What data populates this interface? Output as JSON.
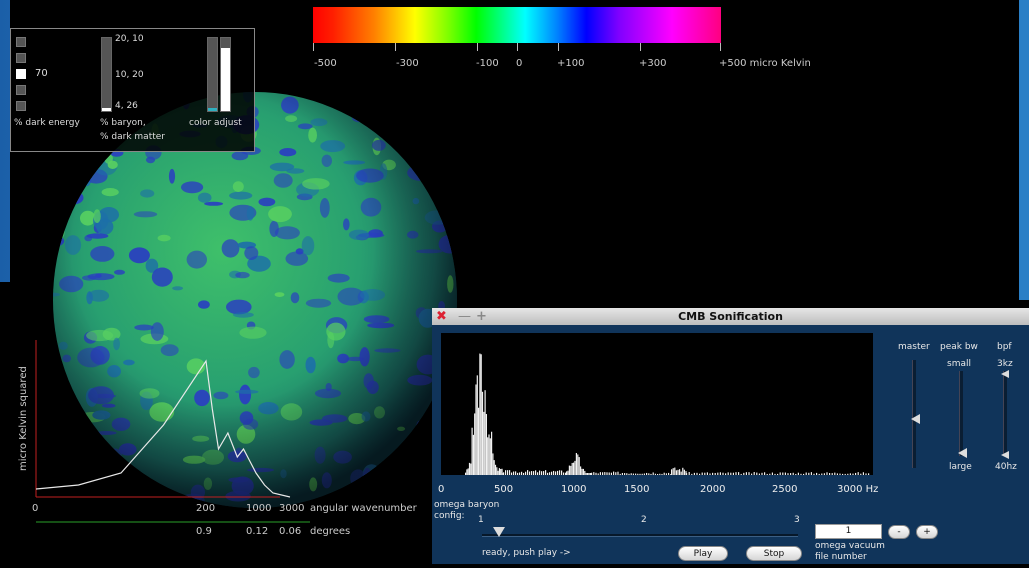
{
  "controls": {
    "dark_energy_value": "70",
    "dark_energy_label": "% dark energy",
    "baryon_top": "20, 10",
    "baryon_mid": "10, 20",
    "baryon_bottom": "4, 26",
    "baryon_label_1": "% baryon,",
    "baryon_label_2": "% dark matter",
    "color_adjust_label": "color adjust"
  },
  "colorbar": {
    "ticks": [
      "-500",
      "-300",
      "-100",
      "0",
      "+100",
      "+300",
      "+500 micro Kelvin"
    ]
  },
  "power_spectrum": {
    "ylabel": "micro Kelvin squared",
    "x_ticks": [
      "0",
      "200",
      "1000",
      "3000"
    ],
    "xlabel": "angular wavenumber",
    "deg_ticks": [
      "0.9",
      "0.12",
      "0.06"
    ],
    "deg_label": "degrees",
    "chart_data": {
      "type": "line",
      "x": [
        0,
        50,
        100,
        150,
        200,
        300,
        400,
        550,
        700,
        800,
        1000,
        1500,
        2000,
        3000
      ],
      "y": [
        2,
        3,
        6,
        18,
        34,
        22,
        12,
        16,
        10,
        12,
        6,
        3,
        1,
        0
      ]
    }
  },
  "cmb_window": {
    "title": "CMB Sonification",
    "hz_ticks": [
      "0",
      "500",
      "1000",
      "1500",
      "2000",
      "2500",
      "3000 Hz"
    ],
    "omega_baryon_1": "omega baryon",
    "omega_baryon_2": "config:",
    "config_ticks": [
      "1",
      "2",
      "3"
    ],
    "status": "ready, push play ->",
    "play_label": "Play",
    "stop_label": "Stop",
    "file_number_value": "1",
    "minus_label": "-",
    "plus_label": "+",
    "omega_vacuum_1": "omega vacuum",
    "omega_vacuum_2": "file number",
    "master_label": "master",
    "peak_bw_label": "peak bw",
    "peak_small": "small",
    "peak_large": "large",
    "bpf_label": "bpf",
    "bpf_top": "3kz",
    "bpf_bottom": "40hz"
  }
}
